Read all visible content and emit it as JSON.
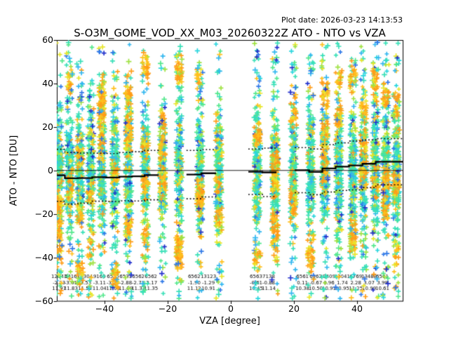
{
  "header": {
    "plot_date": "Plot date: 2026-03-23 14:13:53",
    "title": "S-O3M_GOME_VOD_XX_M03_20260322Z ATO - NTO vs VZA"
  },
  "chart_data": {
    "type": "scatter",
    "title": "S-O3M_GOME_VOD_XX_M03_20260322Z ATO - NTO vs VZA",
    "subtitle": "Plot date: 2026-03-23 14:13:53",
    "xlabel": "VZA [degree]",
    "ylabel": "ATO - NTO [DU]",
    "xlim": [
      -55.1,
      54.5
    ],
    "ylim": [
      -60,
      60
    ],
    "x_ticks": [
      -40,
      -20,
      0,
      20,
      40
    ],
    "x_tick_labels": [
      "−40",
      "−20",
      "0",
      "20",
      "40"
    ],
    "y_ticks": [
      60,
      40,
      20,
      0,
      -20,
      -40,
      -60
    ],
    "y_tick_labels": [
      "60",
      "40",
      "20",
      "0",
      "−20",
      "−40",
      "−60"
    ],
    "grid": false,
    "legend": "none",
    "marker": "plus",
    "zero_line_y": 0,
    "stripe_vza_deg": [
      -54.4,
      -51.1,
      -47.8,
      -44.4,
      -40.9,
      -36.7,
      -32.4,
      -27.1,
      -21.6,
      -16.4,
      -9.8,
      -3.8,
      8.4,
      14.0,
      19.8,
      25.3,
      29.8,
      34.2,
      38.7,
      42.0,
      45.8,
      49.1,
      52.4
    ],
    "stats_bins": [
      {
        "vza_deg": -54.4,
        "count": "12643",
        "mean": "-2.23",
        "std": "11.97"
      },
      {
        "vza_deg": -50.7,
        "count": "6416",
        "mean": "-3.61",
        "std": "11.83"
      },
      {
        "vza_deg": -46.2,
        "count": "10304",
        "mean": "-3.53",
        "std": "11.52"
      },
      {
        "vza_deg": -41.6,
        "count": "9165",
        "mean": "-3.11",
        "std": "11.04"
      },
      {
        "vza_deg": -37.3,
        "count": "6535",
        "mean": "-3.24",
        "std": "11.05"
      },
      {
        "vza_deg": -33.3,
        "count": "6531",
        "mean": "-2.88",
        "std": "11.09"
      },
      {
        "vza_deg": -29.3,
        "count": "6562",
        "mean": "-2.71",
        "std": "11.32"
      },
      {
        "vza_deg": -25.3,
        "count": "6562",
        "mean": "-2.17",
        "std": "11.35"
      },
      {
        "vza_deg": -11.6,
        "count": "6562",
        "mean": "-1.90",
        "std": "11.12"
      },
      {
        "vza_deg": -7.1,
        "count": "13123",
        "mean": "-1.29",
        "std": "10.91"
      },
      {
        "vza_deg": 8.0,
        "count": "6563",
        "mean": "-0.61",
        "std": "10.45"
      },
      {
        "vza_deg": 12.0,
        "count": "7138",
        "mean": "-0.88",
        "std": "11.14"
      },
      {
        "vza_deg": 22.7,
        "count": "6561",
        "mean": "0.11",
        "std": "10.38"
      },
      {
        "vza_deg": 26.9,
        "count": "6562",
        "mean": "-0.67",
        "std": "10.50"
      },
      {
        "vza_deg": 31.1,
        "count": "8409",
        "mean": "0.96",
        "std": "10.91"
      },
      {
        "vza_deg": 35.3,
        "count": "12041",
        "mean": "1.74",
        "std": "10.95"
      },
      {
        "vza_deg": 39.6,
        "count": "6769",
        "mean": "2.28",
        "std": "11.25"
      },
      {
        "vza_deg": 43.8,
        "count": "13488",
        "mean": "3.07",
        "std": "10.99"
      },
      {
        "vza_deg": 48.0,
        "count": "6561",
        "mean": "3.99",
        "std": "10.61"
      }
    ],
    "bin_groups": [
      [
        0,
        7
      ],
      [
        8,
        9
      ],
      [
        10,
        11
      ],
      [
        12,
        18
      ]
    ],
    "line_styles": {
      "mean_line": "solid black step",
      "std_lines": "dotted black step (mean plus/minus std)",
      "zero_line": "thin black horizontal"
    },
    "marker_palette_main": [
      [
        "#38e0b8",
        34
      ],
      [
        "#52e88c",
        14
      ],
      [
        "#2ad6de",
        10
      ],
      [
        "#9fe242",
        10
      ],
      [
        "#e8e62a",
        8
      ],
      [
        "#ffc01e",
        7
      ],
      [
        "#ff9d18",
        4
      ],
      [
        "#31b7f0",
        7
      ],
      [
        "#3079e8",
        4
      ],
      [
        "#2230cc",
        2
      ]
    ],
    "marker_palette_warm": [
      [
        "#ff9d18",
        45
      ],
      [
        "#ffc01e",
        30
      ],
      [
        "#e8e62a",
        15
      ],
      [
        "#9fe242",
        10
      ]
    ],
    "marker_palette_cool": [
      [
        "#31b7f0",
        50
      ],
      [
        "#3079e8",
        30
      ],
      [
        "#2230cc",
        20
      ]
    ],
    "axis_color": "#000000",
    "background_color": "#ffffff"
  }
}
